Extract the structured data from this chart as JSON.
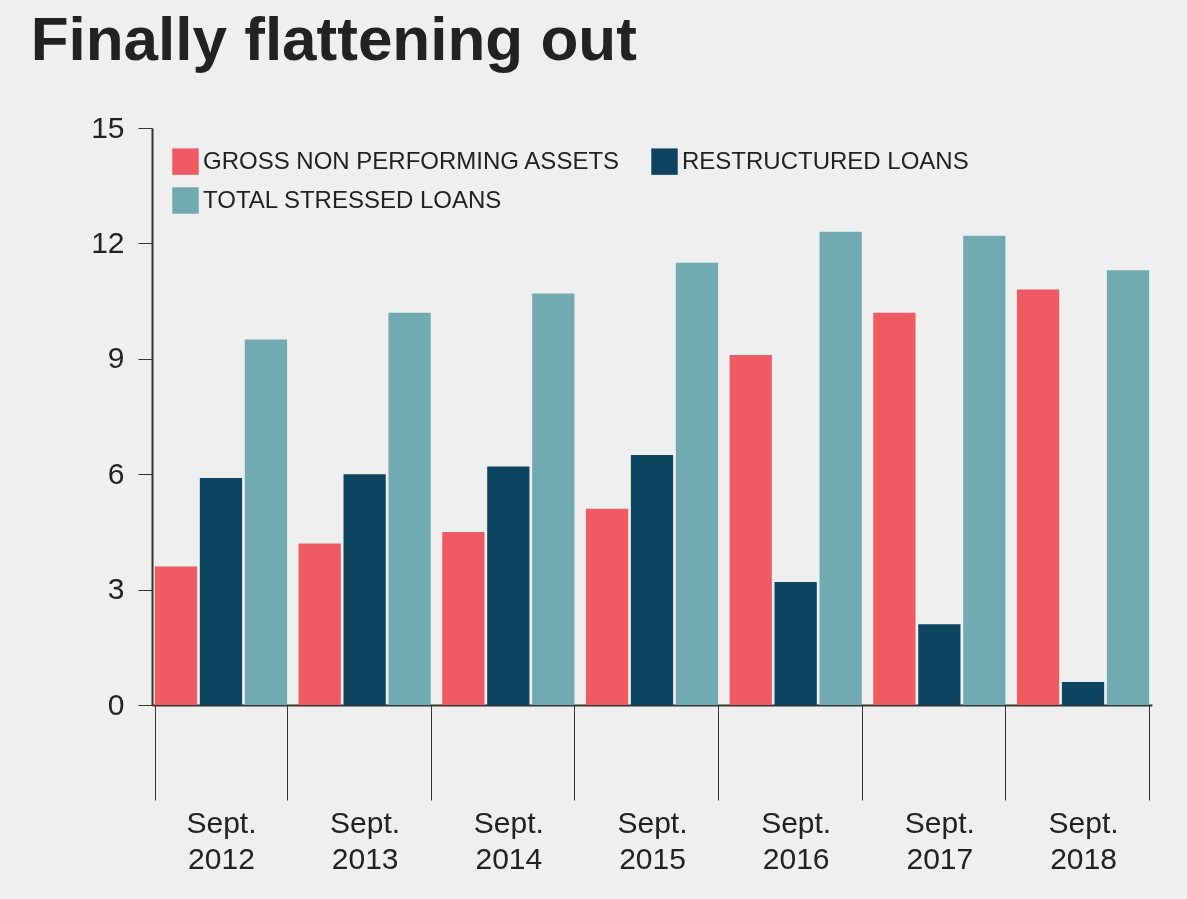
{
  "chart_data": {
    "type": "bar",
    "title": "Finally flattening out",
    "categories": [
      "Sept. 2012",
      "Sept. 2013",
      "Sept. 2014",
      "Sept. 2015",
      "Sept. 2016",
      "Sept. 2017",
      "Sept. 2018"
    ],
    "series": [
      {
        "name": "GROSS NON PERFORMING ASSETS",
        "color": "#ef5a63",
        "values": [
          3.6,
          4.2,
          4.5,
          5.1,
          9.1,
          10.2,
          10.8
        ]
      },
      {
        "name": "RESTRUCTURED LOANS",
        "color": "#0d4560",
        "values": [
          5.9,
          6.0,
          6.2,
          6.5,
          3.2,
          2.1,
          0.6
        ]
      },
      {
        "name": "TOTAL STRESSED LOANS",
        "color": "#72aab2",
        "values": [
          9.5,
          10.2,
          10.7,
          11.5,
          12.3,
          12.2,
          11.3
        ]
      }
    ],
    "ylim": [
      0,
      15
    ],
    "yticks": [
      0,
      3,
      6,
      9,
      12,
      15
    ],
    "grid": false,
    "legend": "top left"
  }
}
